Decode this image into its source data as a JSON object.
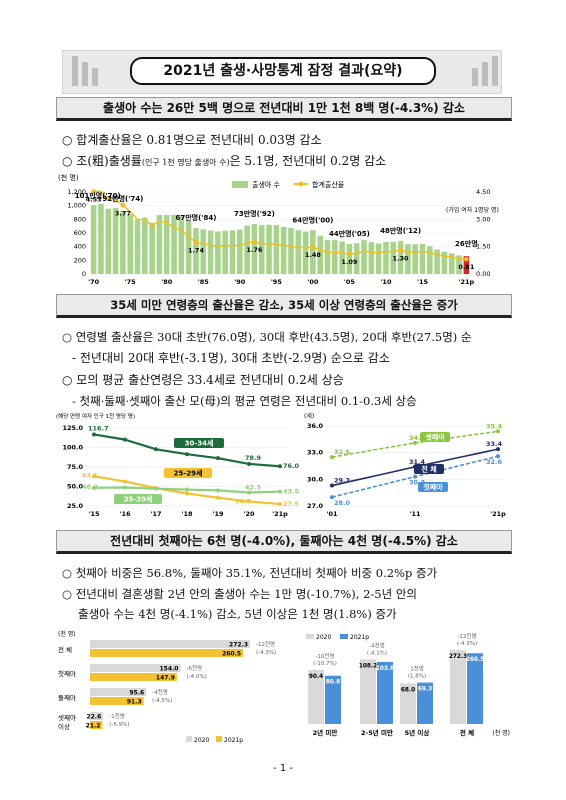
{
  "title": "2021년 출생·사망통계 잠정 결과(요약)",
  "section1": {
    "heading": "출생아 수는 26만 5백 명으로 전년대비 1만 1천 8백 명(-4.3%) 감소",
    "bullet1": "합계출산율은 0.81명으로 전년대비 0.03명 감소",
    "bullet2_a": "조(粗)출생률",
    "bullet2_small": "(인구 1천 명당 출생아 수)",
    "bullet2_b": "은 5.1명, 전년대비 0.2명 감소"
  },
  "chart1": {
    "left_unit": "(천 명)",
    "right_unit": "(가임 여자 1명당 명)",
    "legend_births": "출생아 수",
    "legend_tfr": "합계출산율",
    "callouts": [
      "101만명('70)",
      "92만명('74)",
      "67만명('84)",
      "73만명('92)",
      "64만명('00)",
      "44만명('05)",
      "48만명('12)",
      "26만명"
    ],
    "tfr_labels": [
      "4.53",
      "3.77",
      "1.74",
      "1.76",
      "1.48",
      "1.09",
      "1.30",
      "0.81"
    ],
    "x_ticks": [
      "'70",
      "'75",
      "'80",
      "'85",
      "'90",
      "'95",
      "'00",
      "'05",
      "'10",
      "'15",
      "'21p"
    ],
    "y_left_ticks": [
      "0",
      "200",
      "400",
      "600",
      "800",
      "1,000",
      "1,200"
    ],
    "y_right_ticks": [
      "0.00",
      "1.50",
      "3.00",
      "4.50"
    ]
  },
  "section2": {
    "heading": "35세 미만 연령층의 출산율은 감소, 35세 이상 연령층의 출산율은 증가",
    "bullet1": "연령별 출산율은 30대 초반(76.0명), 30대 후반(43.5명), 20대 후반(27.5명) 순",
    "dash1": "- 전년대비 20대 후반(-3.1명), 30대 초반(-2.9명) 순으로 감소",
    "bullet2": "모의 평균 출산연령은 33.4세로 전년대비 0.2세 상승",
    "dash2": "- 첫째·둘째·셋째아 출산 모(母)의 평균 연령은 전년대비 0.1-0.3세 상승"
  },
  "chart2": {
    "unit": "(해당 연령 여자 인구 1천 명당 명)",
    "y_ticks": [
      "25.0",
      "50.0",
      "75.0",
      "100.0",
      "125.0"
    ],
    "x_ticks": [
      "'15",
      "'16",
      "'17",
      "'18",
      "'19",
      "'20",
      "'21p"
    ],
    "series_labels": [
      "30-34세",
      "25-29세",
      "35-39세"
    ],
    "value_labels": [
      "116.7",
      "63.1",
      "48.3",
      "78.9",
      "76.0",
      "42.3",
      "43.5",
      "30.7",
      "27.5"
    ]
  },
  "chart3": {
    "unit": "(세)",
    "y_ticks": [
      "27.0",
      "30.0",
      "33.0",
      "36.0"
    ],
    "x_ticks": [
      "'01",
      "'11",
      "'21p"
    ],
    "series_labels": [
      "셋째아",
      "전 체",
      "첫째아"
    ],
    "value_labels": [
      "32.5",
      "29.3",
      "28.0",
      "34.1",
      "31.4",
      "30.3",
      "35.4",
      "33.4",
      "32.6"
    ]
  },
  "section3": {
    "heading": "전년대비 첫째아는 6천 명(-4.0%), 둘째아는 4천 명(-4.5%) 감소",
    "bullet1": "첫째아 비중은 56.8%, 둘째아 35.1%, 전년대비 첫째아 비중 0.2%p 증가",
    "bullet2_line1": "전년대비 결혼생활 2년 안의 출생아 수는 1만 명(-10.7%), 2-5년 안의",
    "bullet2_line2": "출생아 수는 4천 명(-4.1%) 감소, 5년 이상은 1천 명(1.8%) 증가"
  },
  "chart4": {
    "unit": "(천 명)",
    "categories": [
      "전 체",
      "첫째아",
      "둘째아",
      "셋째아 이상"
    ],
    "v2020": [
      "272.3",
      "154.0",
      "95.6",
      "22.6"
    ],
    "v2021": [
      "260.5",
      "147.9",
      "91.3",
      "21.2"
    ],
    "notes_a": [
      "-12천명",
      "-6천명",
      "-4천명",
      "-1천명"
    ],
    "notes_b": [
      "(-4.3%)",
      "(-4.0%)",
      "(-4.5%)",
      "(-5.9%)"
    ],
    "legend_2020": "2020",
    "legend_2021": "2021p"
  },
  "chart5": {
    "legend_2020": "2020",
    "legend_2021": "2021p",
    "categories": [
      "2년 미만",
      "2-5년 미만",
      "5년 이상",
      "전 체"
    ],
    "unit": "(천 명)",
    "v2020": [
      "90.4",
      "108.2",
      "68.0",
      "272.3"
    ],
    "v2021": [
      "80.8",
      "103.8",
      "69.3",
      "260.5"
    ],
    "notes_a": [
      "-10천명",
      "-4천명",
      "1천명",
      "-12천명"
    ],
    "notes_b": [
      "(-10.7%)",
      "(-4.1%)",
      "(1.8%)",
      "(-4.3%)"
    ]
  },
  "page_number": "- 1 -",
  "colors": {
    "bar_green": "#a8d38a",
    "tfr_yellow": "#f0c020",
    "last_bar_red": "#e02020",
    "dark_green": "#1e6b3a",
    "light_green": "#8fd17a",
    "navy": "#1f2f66",
    "blue": "#4a90d9",
    "gold": "#f3c233",
    "gray": "#d9d9d9"
  }
}
